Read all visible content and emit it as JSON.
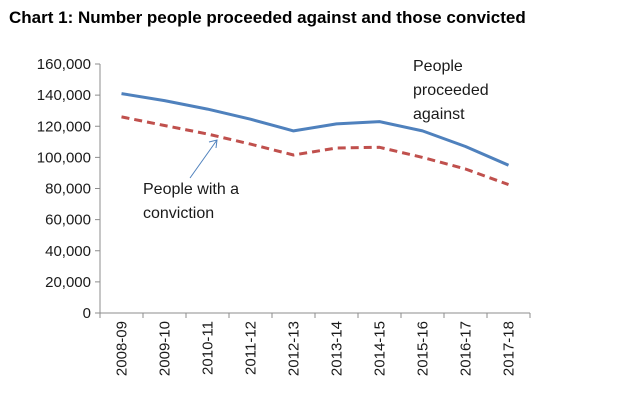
{
  "chart_data": {
    "type": "line",
    "title": "Chart 1: Number people proceeded against and those convicted",
    "categories": [
      "2008-09",
      "2009-10",
      "2010-11",
      "2011-12",
      "2012-13",
      "2013-14",
      "2014-15",
      "2015-16",
      "2016-17",
      "2017-18"
    ],
    "series": [
      {
        "name": "People proceeded against",
        "values": [
          141000,
          136500,
          131000,
          124500,
          117000,
          121500,
          123000,
          117000,
          107000,
          95000
        ],
        "color": "#4f81bd",
        "style": "solid"
      },
      {
        "name": "People with a conviction",
        "values": [
          126000,
          120500,
          115000,
          108500,
          101500,
          106000,
          106500,
          100000,
          92500,
          82500
        ],
        "color": "#c0504d",
        "style": "dashed"
      }
    ],
    "ylim": [
      0,
      160000
    ],
    "yticks": [
      0,
      20000,
      40000,
      60000,
      80000,
      100000,
      120000,
      140000,
      160000
    ],
    "ytick_labels": [
      "0",
      "20,000",
      "40,000",
      "60,000",
      "80,000",
      "100,000",
      "120,000",
      "140,000",
      "160,000"
    ],
    "xlabel": "",
    "ylabel": "",
    "grid": false,
    "legend": "none",
    "annotations": [
      {
        "lines": [
          "People",
          "proceeded",
          "against"
        ],
        "series": 0
      },
      {
        "lines": [
          "People with a",
          "conviction"
        ],
        "series": 1,
        "arrow": true
      }
    ]
  }
}
